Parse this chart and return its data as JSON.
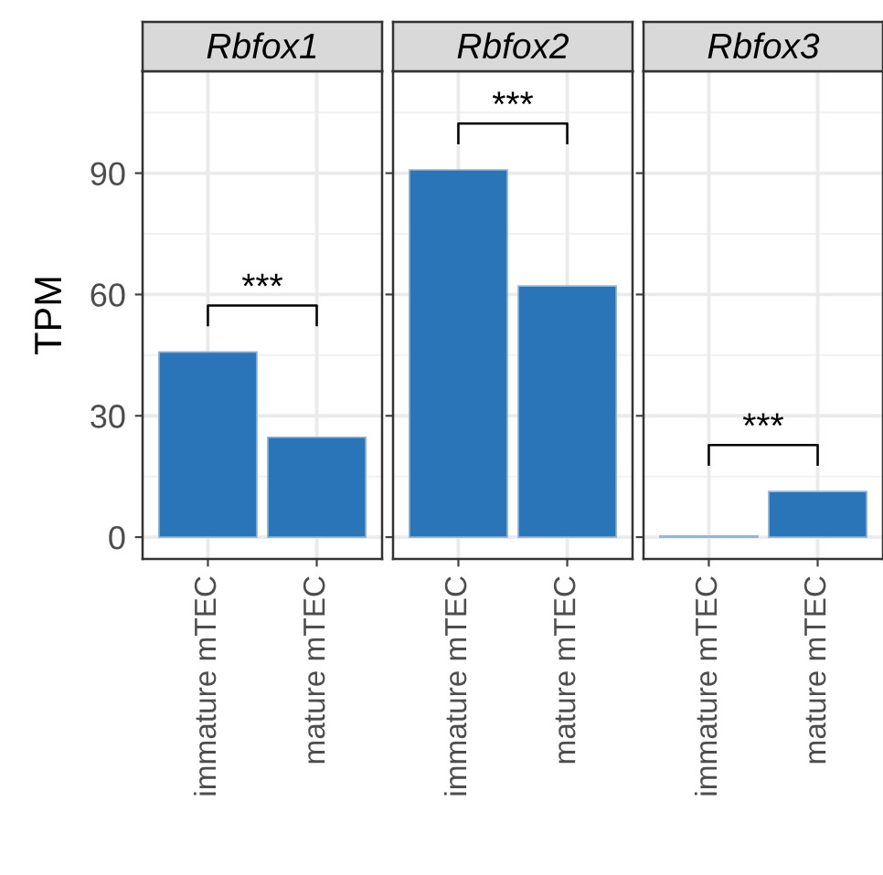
{
  "chart_data": [
    {
      "type": "bar",
      "title": "Rbfox1",
      "ylabel": "TPM",
      "categories": [
        "immature mTEC",
        "mature mTEC"
      ],
      "series": [
        {
          "color": "#2a74b8",
          "values": [
            45.8,
            24.7
          ]
        }
      ],
      "ylim": [
        -5.4,
        115.2
      ],
      "yticks": [
        0,
        30,
        60,
        90
      ],
      "grid": true,
      "annotations": [
        "***"
      ]
    },
    {
      "type": "bar",
      "title": "Rbfox2",
      "categories": [
        "immature mTEC",
        "mature mTEC"
      ],
      "series": [
        {
          "color": "#2a74b8",
          "values": [
            90.8,
            62.1
          ]
        }
      ],
      "ylim": [
        -5.4,
        115.2
      ],
      "yticks": [
        0,
        30,
        60,
        90
      ],
      "grid": true,
      "tick_labels": "x",
      "annotations": [
        "***"
      ]
    },
    {
      "type": "bar",
      "title": "Rbfox3",
      "categories": [
        "immature mTEC",
        "mature mTEC"
      ],
      "series": [
        {
          "color": "#2a74b8",
          "values": [
            0.3,
            11.3
          ]
        }
      ],
      "ylim": [
        -5.4,
        115.2
      ],
      "yticks": [
        0,
        30,
        60,
        90
      ],
      "grid": true,
      "tick_labels": "x",
      "annotations": [
        "***"
      ]
    }
  ]
}
